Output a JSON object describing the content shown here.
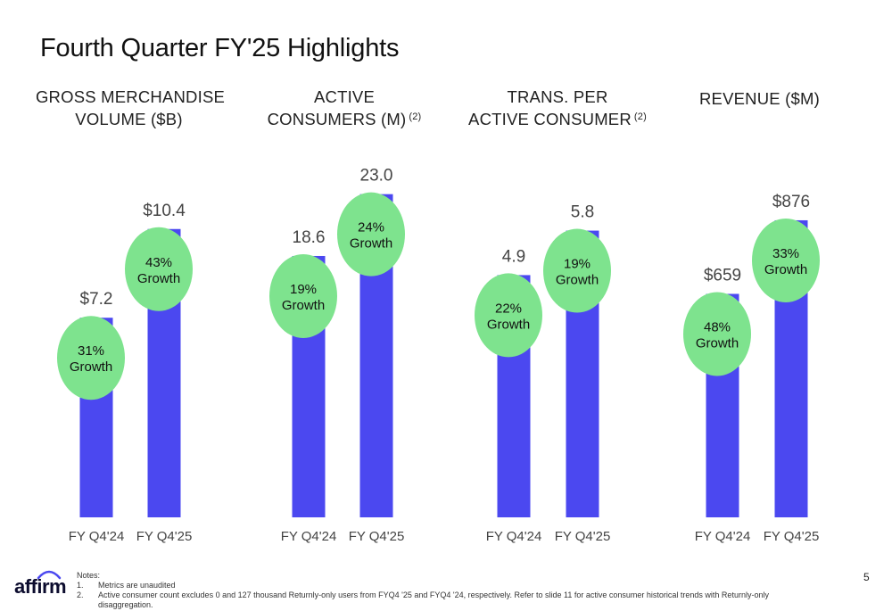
{
  "slide": {
    "title": "Fourth Quarter FY'25 Highlights",
    "page_number": "5",
    "logo_text": "affirm",
    "notes_label": "Notes:",
    "notes": [
      {
        "num": "1.",
        "text": "Metrics are unaudited"
      },
      {
        "num": "2.",
        "text": "Active consumer count excludes 0 and 127 thousand Returnly-only users from FYQ4 '25 and FYQ4 '24, respectively. Refer to slide 11 for active consumer historical trends with Returnly-only disaggregation."
      }
    ]
  },
  "colors": {
    "bar": "#4b48f0",
    "bubble": "#7ee38e",
    "text": "#222222"
  },
  "chart_data": [
    {
      "type": "bar",
      "title_lines": [
        "GROSS MERCHANDISE",
        "VOLUME ($B)"
      ],
      "title_note": "",
      "categories": [
        "FY Q4'24",
        "FY Q4'25"
      ],
      "values": [
        7.2,
        10.4
      ],
      "value_labels": [
        "$7.2",
        "$10.4"
      ],
      "growth": [
        "31%",
        "43%"
      ],
      "growth_word": "Growth",
      "ylim": [
        0,
        14.8
      ]
    },
    {
      "type": "bar",
      "title_lines": [
        "ACTIVE",
        "CONSUMERS (M)"
      ],
      "title_note": "(2)",
      "categories": [
        "FY Q4'24",
        "FY Q4'25"
      ],
      "values": [
        18.6,
        23.0
      ],
      "value_labels": [
        "18.6",
        "23.0"
      ],
      "growth": [
        "19%",
        "24%"
      ],
      "growth_word": "Growth",
      "ylim": [
        0,
        29.2
      ]
    },
    {
      "type": "bar",
      "title_lines": [
        "TRANS. PER",
        "ACTIVE CONSUMER"
      ],
      "title_note": "(2)",
      "categories": [
        "FY Q4'24",
        "FY Q4'25"
      ],
      "values": [
        4.9,
        5.8
      ],
      "value_labels": [
        "4.9",
        "5.8"
      ],
      "growth": [
        "22%",
        "19%"
      ],
      "growth_word": "Growth",
      "ylim": [
        0,
        8.3
      ]
    },
    {
      "type": "bar",
      "title_lines": [
        "",
        "REVENUE ($M)"
      ],
      "title_note": "",
      "categories": [
        "FY Q4'24",
        "FY Q4'25"
      ],
      "values": [
        659,
        876
      ],
      "value_labels": [
        "$659",
        "$876"
      ],
      "growth": [
        "48%",
        "33%"
      ],
      "growth_word": "Growth",
      "ylim": [
        0,
        1210
      ]
    }
  ]
}
